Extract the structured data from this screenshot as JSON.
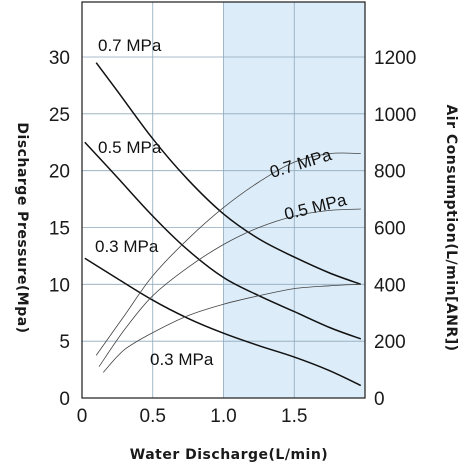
{
  "chart_data": {
    "type": "line",
    "title": "",
    "xlabel": "Water Discharge(L/min)",
    "ylabel_left": "Discharge Pressure(Mpa)",
    "ylabel_right": "Air Consumption(L/min[ANR])",
    "xlim": [
      0,
      2.0
    ],
    "ylim_left": [
      0,
      30
    ],
    "ylim_right": [
      0,
      1200
    ],
    "xticks": [
      "0",
      "0.5",
      "1.0",
      "1.5"
    ],
    "yticks_left": [
      "0",
      "5",
      "10",
      "15",
      "20",
      "25",
      "30"
    ],
    "yticks_right": [
      "0",
      "200",
      "400",
      "600",
      "800",
      "1000",
      "1200"
    ],
    "grid": true,
    "highlight_band": {
      "x": [
        1.0,
        2.0
      ],
      "color": "#dcecf8"
    },
    "pressure_series": [
      {
        "name": "0.7 MPa",
        "axis": "left",
        "x": [
          0.1,
          0.25,
          0.5,
          0.75,
          1.0,
          1.25,
          1.5,
          1.75,
          1.97
        ],
        "y": [
          29.5,
          27.0,
          22.8,
          19.2,
          16.2,
          14.0,
          12.4,
          11.0,
          10.0
        ]
      },
      {
        "name": "0.5 MPa",
        "axis": "left",
        "x": [
          0.02,
          0.25,
          0.5,
          0.75,
          1.0,
          1.25,
          1.5,
          1.75,
          1.97
        ],
        "y": [
          22.5,
          19.4,
          16.0,
          13.0,
          10.6,
          9.0,
          7.6,
          6.2,
          5.2
        ]
      },
      {
        "name": "0.3 MPa",
        "axis": "left",
        "x": [
          0.02,
          0.25,
          0.5,
          0.75,
          1.0,
          1.25,
          1.5,
          1.75,
          1.97
        ],
        "y": [
          12.3,
          10.5,
          8.6,
          7.0,
          5.7,
          4.6,
          3.6,
          2.4,
          1.1
        ]
      }
    ],
    "air_series": [
      {
        "name": "0.7 MPa",
        "axis": "right",
        "x": [
          0.1,
          0.3,
          0.5,
          0.75,
          1.0,
          1.25,
          1.5,
          1.75,
          1.97
        ],
        "y": [
          150,
          290,
          430,
          560,
          670,
          760,
          830,
          860,
          860
        ]
      },
      {
        "name": "0.5 MPa",
        "axis": "right",
        "x": [
          0.12,
          0.3,
          0.5,
          0.75,
          1.0,
          1.25,
          1.5,
          1.75,
          1.97
        ],
        "y": [
          110,
          240,
          360,
          460,
          540,
          600,
          640,
          660,
          665
        ]
      },
      {
        "name": "0.3 MPa",
        "axis": "right",
        "x": [
          0.15,
          0.3,
          0.5,
          0.75,
          1.0,
          1.25,
          1.5,
          1.75,
          1.97
        ],
        "y": [
          90,
          170,
          230,
          290,
          330,
          360,
          385,
          395,
          400
        ]
      }
    ]
  }
}
